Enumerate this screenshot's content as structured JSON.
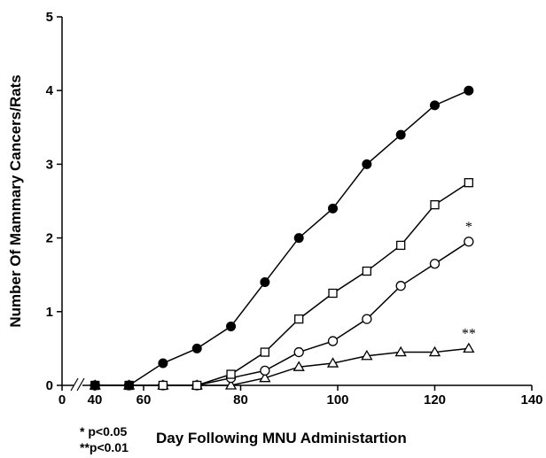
{
  "chart_data": {
    "type": "line",
    "title": "",
    "xlabel": "Day Following MNU Administartion",
    "ylabel": "Number Of Mammary Cancers/Rats",
    "xlim": [
      0,
      140
    ],
    "ylim": [
      0,
      5
    ],
    "x_axis_break": true,
    "x_ticks": [
      "0",
      "40",
      "60",
      "80",
      "100",
      "120",
      "140"
    ],
    "y_ticks": [
      "0",
      "1",
      "2",
      "3",
      "4",
      "5"
    ],
    "grid": false,
    "legend": "none",
    "x": [
      50,
      57,
      64,
      71,
      78,
      85,
      92,
      99,
      106,
      113,
      120,
      127
    ],
    "series": [
      {
        "marker": "filled-circle",
        "values": [
          0,
          0,
          0.3,
          0.5,
          0.8,
          1.4,
          2.0,
          2.4,
          3.0,
          3.4,
          3.8,
          4.0
        ]
      },
      {
        "marker": "open-square",
        "values": [
          0,
          0,
          0,
          0,
          0.15,
          0.45,
          0.9,
          1.25,
          1.55,
          1.9,
          2.45,
          2.75
        ],
        "annotation": ""
      },
      {
        "marker": "open-circle",
        "values": [
          0,
          0,
          0,
          0,
          0.1,
          0.2,
          0.45,
          0.6,
          0.9,
          1.35,
          1.65,
          1.95
        ],
        "annotation": "*"
      },
      {
        "marker": "open-triangle",
        "values": [
          0,
          0,
          0,
          0,
          0,
          0.1,
          0.25,
          0.3,
          0.4,
          0.45,
          0.45,
          0.5
        ],
        "annotation": "**"
      }
    ],
    "footnotes": [
      "* p<0.05",
      "**p<0.01"
    ]
  }
}
